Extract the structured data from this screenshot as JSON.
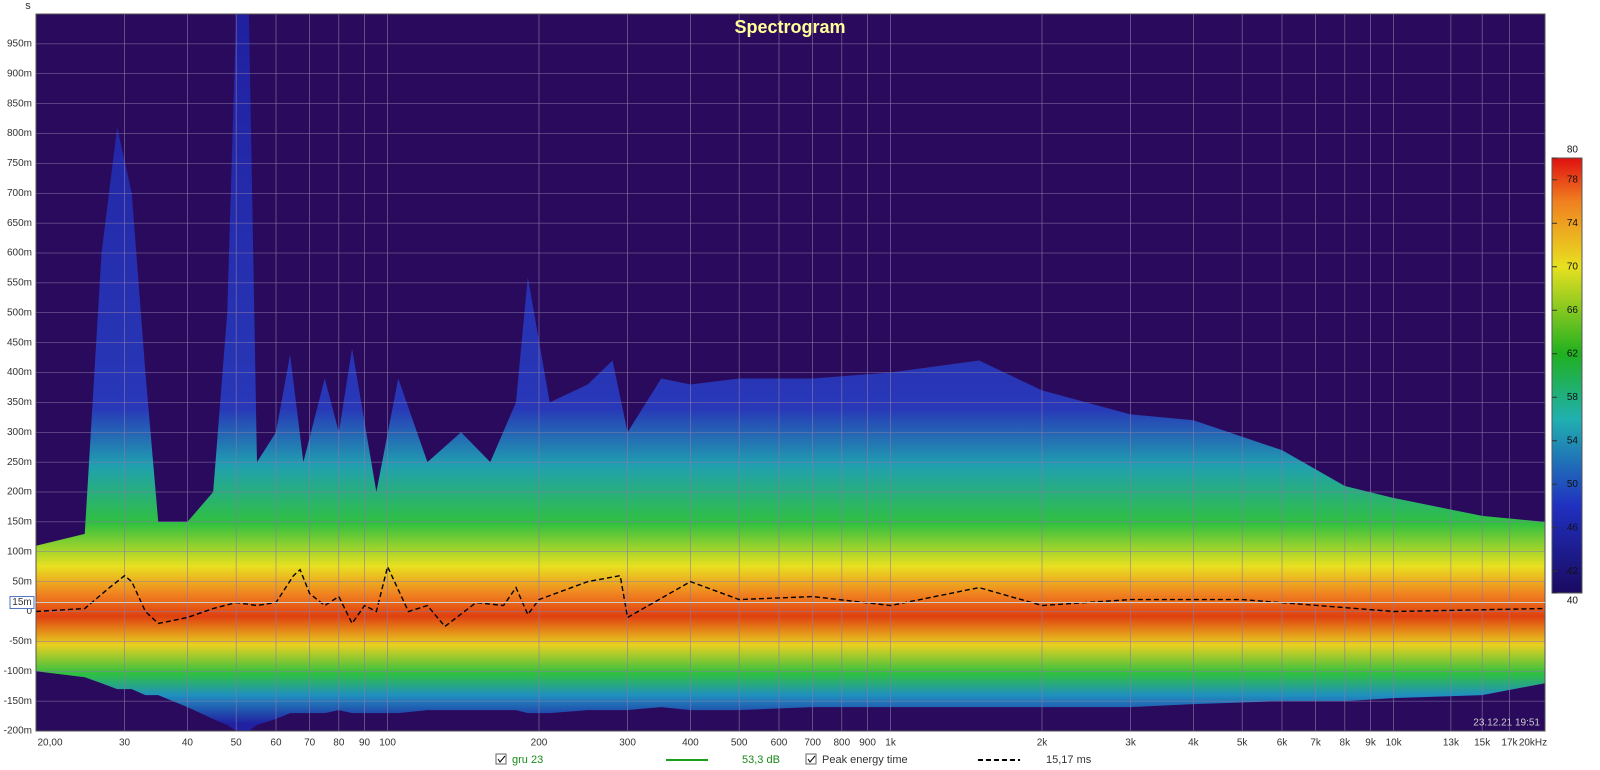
{
  "chart_data": {
    "type": "spectrogram",
    "title": "Spectrogram",
    "y_unit": "s",
    "xscale": "log",
    "xlim": [
      20,
      20000
    ],
    "ylim": [
      -200,
      1000
    ],
    "grid": true,
    "xticks": [
      {
        "value": 20,
        "label": "20,00"
      },
      30,
      40,
      50,
      60,
      70,
      80,
      90,
      100,
      200,
      300,
      400,
      500,
      600,
      700,
      800,
      900,
      {
        "value": 1000,
        "label": "1k"
      },
      {
        "value": 2000,
        "label": "2k"
      },
      {
        "value": 3000,
        "label": "3k"
      },
      {
        "value": 4000,
        "label": "4k"
      },
      {
        "value": 5000,
        "label": "5k"
      },
      {
        "value": 6000,
        "label": "6k"
      },
      {
        "value": 7000,
        "label": "7k"
      },
      {
        "value": 8000,
        "label": "8k"
      },
      {
        "value": 9000,
        "label": "9k"
      },
      {
        "value": 10000,
        "label": "10k"
      },
      {
        "value": 13000,
        "label": "13k"
      },
      {
        "value": 15000,
        "label": "15k"
      },
      {
        "value": 17000,
        "label": "17k"
      },
      {
        "value": 20000,
        "label": "20kHz"
      }
    ],
    "yticks": [
      {
        "value": -200,
        "label": "-200m"
      },
      {
        "value": -150,
        "label": "-150m"
      },
      {
        "value": -100,
        "label": "-100m"
      },
      {
        "value": -50,
        "label": "-50m"
      },
      0,
      {
        "value": 50,
        "label": "50m"
      },
      {
        "value": 100,
        "label": "100m"
      },
      {
        "value": 150,
        "label": "150m"
      },
      {
        "value": 200,
        "label": "200m"
      },
      {
        "value": 250,
        "label": "250m"
      },
      {
        "value": 300,
        "label": "300m"
      },
      {
        "value": 350,
        "label": "350m"
      },
      {
        "value": 400,
        "label": "400m"
      },
      {
        "value": 450,
        "label": "450m"
      },
      {
        "value": 500,
        "label": "500m"
      },
      {
        "value": 550,
        "label": "550m"
      },
      {
        "value": 600,
        "label": "600m"
      },
      {
        "value": 650,
        "label": "650m"
      },
      {
        "value": 700,
        "label": "700m"
      },
      {
        "value": 750,
        "label": "750m"
      },
      {
        "value": 800,
        "label": "800m"
      },
      {
        "value": 850,
        "label": "850m"
      },
      {
        "value": 900,
        "label": "900m"
      },
      {
        "value": 950,
        "label": "950m"
      }
    ],
    "y_cursor": {
      "value": 15,
      "label": "15m"
    },
    "colorbar": {
      "lim": [
        40,
        80
      ],
      "ticks": [
        40,
        42,
        46,
        50,
        54,
        58,
        62,
        66,
        70,
        74,
        78,
        80
      ]
    },
    "timestamp": "23.12.21 19:51",
    "series": [
      {
        "name": "gru 23",
        "color": "#1aa01a",
        "legend_value": "53,3 dB",
        "x": [
          20,
          25,
          27,
          29,
          31,
          33,
          35,
          40,
          45,
          48,
          50,
          53,
          55,
          60,
          64,
          68,
          75,
          80,
          85,
          95,
          105,
          120,
          140,
          160,
          180,
          190,
          210,
          250,
          280,
          300,
          350,
          400,
          500,
          700,
          1000,
          1500,
          2000,
          3000,
          4000,
          6000,
          8000,
          10000,
          15000,
          20000
        ],
        "values": [
          110,
          130,
          600,
          810,
          700,
          400,
          150,
          150,
          200,
          500,
          1000,
          1000,
          250,
          300,
          430,
          250,
          390,
          300,
          440,
          200,
          390,
          250,
          300,
          250,
          350,
          560,
          350,
          380,
          420,
          300,
          390,
          380,
          390,
          390,
          400,
          420,
          370,
          330,
          320,
          270,
          210,
          190,
          160,
          150
        ],
        "low": [
          -100,
          -110,
          -120,
          -130,
          -130,
          -140,
          -140,
          -160,
          -180,
          -190,
          -200,
          -200,
          -190,
          -180,
          -170,
          -170,
          -170,
          -165,
          -170,
          -170,
          -170,
          -165,
          -165,
          -165,
          -165,
          -170,
          -170,
          -165,
          -165,
          -165,
          -160,
          -165,
          -165,
          -160,
          -160,
          -160,
          -160,
          -160,
          -155,
          -150,
          -150,
          -145,
          -140,
          -120
        ]
      },
      {
        "name": "Peak energy time",
        "color": "#000000",
        "dash": true,
        "legend_value": "15,17 ms",
        "x": [
          20,
          25,
          28,
          30,
          31,
          33,
          35,
          40,
          45,
          50,
          55,
          60,
          65,
          67,
          70,
          75,
          80,
          85,
          90,
          95,
          100,
          110,
          120,
          130,
          150,
          170,
          180,
          190,
          200,
          250,
          290,
          300,
          400,
          500,
          700,
          1000,
          1500,
          2000,
          3000,
          5000,
          10000,
          20000
        ],
        "values": [
          0,
          5,
          40,
          60,
          50,
          0,
          -20,
          -10,
          5,
          15,
          10,
          15,
          60,
          70,
          30,
          10,
          25,
          -20,
          10,
          0,
          75,
          0,
          10,
          -25,
          15,
          10,
          40,
          -5,
          20,
          50,
          60,
          -10,
          50,
          20,
          25,
          10,
          40,
          10,
          20,
          20,
          0,
          5
        ]
      }
    ]
  }
}
